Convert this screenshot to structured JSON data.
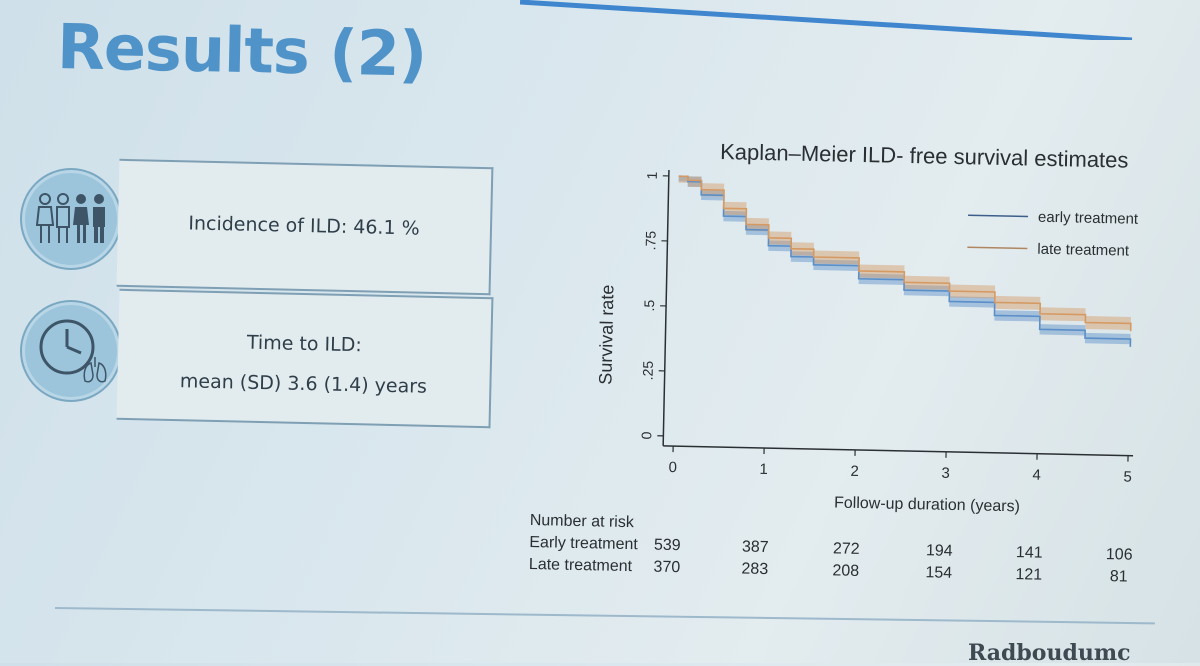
{
  "slide": {
    "title": "Results (2)",
    "footer_logo": "Radboudumc"
  },
  "cards": [
    {
      "icon": "people-icon",
      "text": "Incidence of ILD: 46.1 %"
    },
    {
      "icon": "clock-lungs-icon",
      "line1": "Time to ILD:",
      "line2": "mean (SD) 3.6 (1.4) years"
    }
  ],
  "colors": {
    "title": "#4f93c8",
    "early": "#5b8fc8",
    "late": "#d59a63"
  },
  "chart_data": {
    "type": "line",
    "title": "Kaplan–Meier ILD- free survival estimates",
    "xlabel": "Follow-up duration (years)",
    "ylabel": "Survival rate",
    "xlim": [
      0,
      5
    ],
    "ylim": [
      0,
      1
    ],
    "x_ticks": [
      "0",
      "1",
      "2",
      "3",
      "4",
      "5"
    ],
    "y_ticks": [
      "0",
      ".25",
      ".5",
      ".75",
      "1"
    ],
    "legend_position": "top-right",
    "series": [
      {
        "name": "early treatment",
        "x": [
          0,
          0.1,
          0.25,
          0.5,
          0.75,
          1,
          1.25,
          1.5,
          2,
          2.5,
          3,
          3.5,
          4,
          4.5,
          5
        ],
        "y": [
          1,
          0.98,
          0.93,
          0.85,
          0.8,
          0.74,
          0.7,
          0.67,
          0.62,
          0.58,
          0.54,
          0.49,
          0.44,
          0.41,
          0.38
        ],
        "ci_halfwidth": 0.02
      },
      {
        "name": "late treatment",
        "x": [
          0,
          0.1,
          0.25,
          0.5,
          0.75,
          1,
          1.25,
          1.5,
          2,
          2.5,
          3,
          3.5,
          4,
          4.5,
          5
        ],
        "y": [
          1,
          0.985,
          0.95,
          0.88,
          0.82,
          0.77,
          0.73,
          0.7,
          0.65,
          0.61,
          0.58,
          0.54,
          0.5,
          0.47,
          0.44
        ],
        "ci_halfwidth": 0.025
      }
    ],
    "risk_table": {
      "header": "Number at risk",
      "rows": [
        {
          "label": "Early treatment",
          "values": [
            "539",
            "387",
            "272",
            "194",
            "141",
            "106"
          ]
        },
        {
          "label": "Late treatment",
          "values": [
            "370",
            "283",
            "208",
            "154",
            "121",
            "81"
          ]
        }
      ]
    }
  }
}
